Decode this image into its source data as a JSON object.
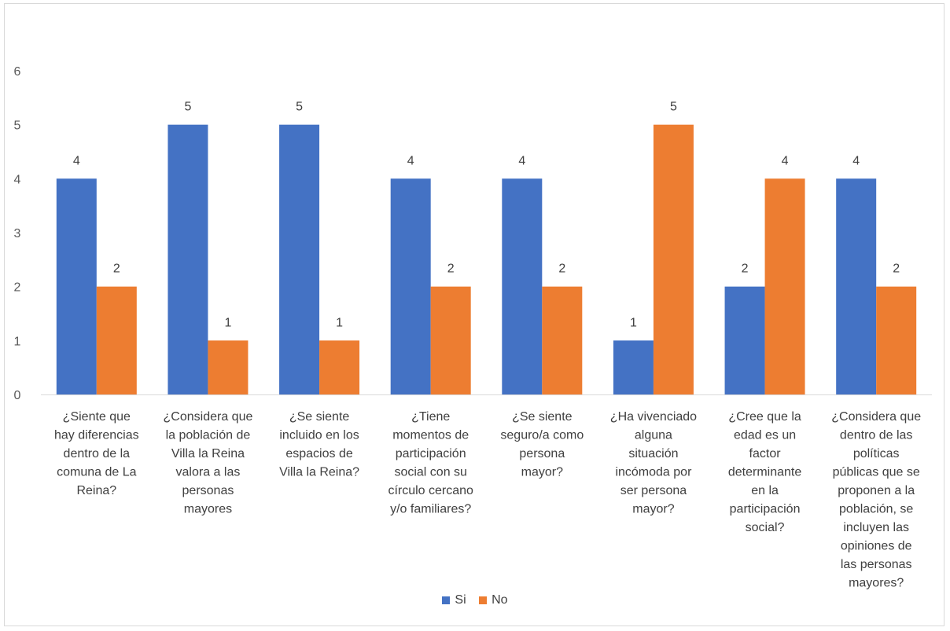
{
  "chart_data": {
    "type": "bar",
    "title": "",
    "xlabel": "",
    "ylabel": "",
    "ylim": [
      0,
      6
    ],
    "yticks": [
      0,
      1,
      2,
      3,
      4,
      5,
      6
    ],
    "grid": false,
    "legend_position": "bottom",
    "categories": [
      "¿Siente que hay diferencias dentro de la comuna de La Reina?",
      "¿Considera que la población de Villa la Reina valora a las personas mayores",
      "¿Se siente incluido en los espacios de Villa la Reina?",
      "¿Tiene momentos de participación social con su círculo cercano y/o familiares?",
      "¿Se siente seguro/a como persona mayor?",
      "¿Ha vivenciado alguna situación incómoda por ser persona mayor?",
      "¿Cree que la edad es un factor determinante en la participación social?",
      "¿Considera que dentro de las políticas públicas que se proponen a la población, se incluyen las opiniones de las personas mayores?"
    ],
    "category_lines": [
      [
        "¿Siente que",
        "hay diferencias",
        "dentro de la",
        "comuna de La",
        "Reina?"
      ],
      [
        "¿Considera que",
        "la población de",
        "Villa la Reina",
        "valora a las",
        "personas",
        "mayores"
      ],
      [
        "¿Se siente",
        "incluido en los",
        "espacios de",
        "Villa la Reina?"
      ],
      [
        "¿Tiene",
        "momentos de",
        "participación",
        "social con su",
        "círculo cercano",
        "y/o familiares?"
      ],
      [
        "¿Se siente",
        "seguro/a como",
        "persona",
        "mayor?"
      ],
      [
        "¿Ha vivenciado",
        "alguna",
        "situación",
        "incómoda por",
        "ser persona",
        "mayor?"
      ],
      [
        "¿Cree que la",
        "edad es un",
        "factor",
        "determinante",
        "en la",
        "participación",
        "social?"
      ],
      [
        "¿Considera que",
        "dentro de las",
        "políticas",
        "públicas que se",
        "proponen a la",
        "población, se",
        "incluyen las",
        "opiniones de",
        "las personas",
        "mayores?"
      ]
    ],
    "series": [
      {
        "name": "Si",
        "color": "#4472C4",
        "values": [
          4,
          5,
          5,
          4,
          4,
          1,
          2,
          4
        ]
      },
      {
        "name": "No",
        "color": "#ED7D31",
        "values": [
          2,
          1,
          1,
          2,
          2,
          5,
          4,
          2
        ]
      }
    ]
  }
}
